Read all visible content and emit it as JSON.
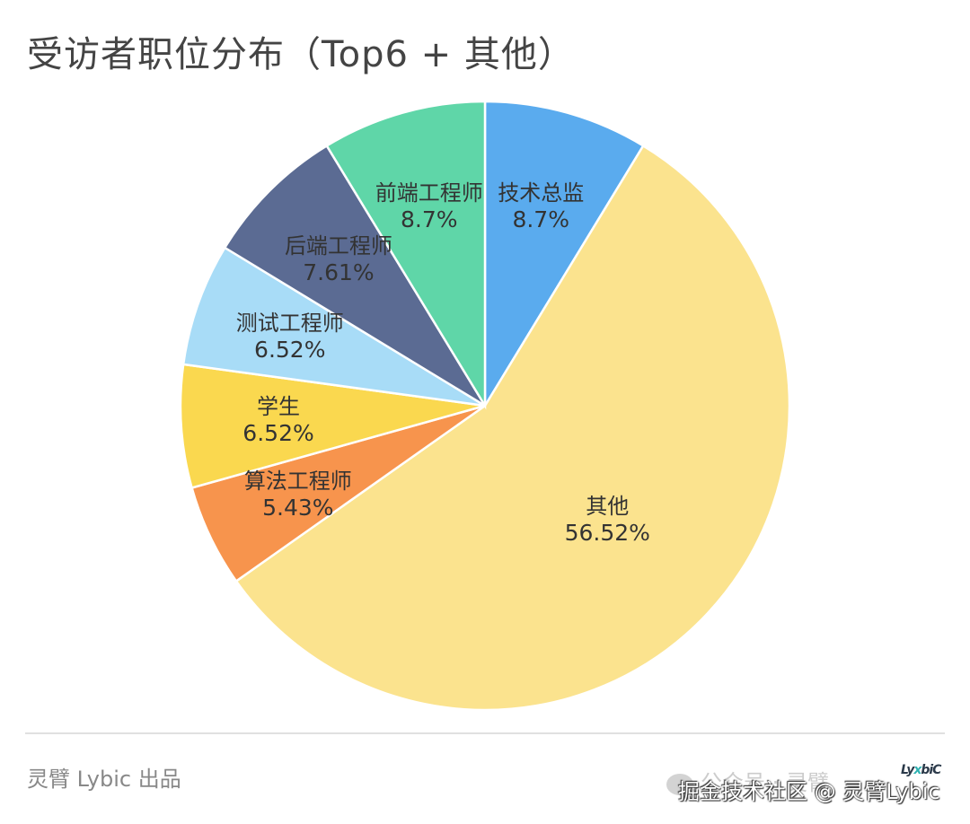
{
  "title": "受访者职位分布（Top6 + 其他）",
  "chart_data": {
    "type": "pie",
    "title": "受访者职位分布（Top6 + 其他）",
    "start_angle": "12 o'clock, clockwise",
    "labels_inside": true,
    "legend": "none",
    "slices": [
      {
        "label": "技术总监",
        "value": 8.7,
        "display": "8.7%",
        "color": "#5aabee"
      },
      {
        "label": "其他",
        "value": 56.52,
        "display": "56.52%",
        "color": "#fbe38e"
      },
      {
        "label": "算法工程师",
        "value": 5.43,
        "display": "5.43%",
        "color": "#f7944d"
      },
      {
        "label": "学生",
        "value": 6.52,
        "display": "6.52%",
        "color": "#fad84f"
      },
      {
        "label": "测试工程师",
        "value": 6.52,
        "display": "6.52%",
        "color": "#a8dcf7"
      },
      {
        "label": "后端工程师",
        "value": 7.61,
        "display": "7.61%",
        "color": "#5b6b93"
      },
      {
        "label": "前端工程师",
        "value": 8.7,
        "display": "8.7%",
        "color": "#5fd6a8"
      }
    ]
  },
  "footer": {
    "credit": "灵臂 Lybic 出品",
    "watermark_faded": "公众号 · 灵臂",
    "watermark": "掘金技术社区 @ 灵臂Lybic",
    "logo": {
      "left": "Ly",
      "mid": "x",
      "right": "biC"
    }
  }
}
